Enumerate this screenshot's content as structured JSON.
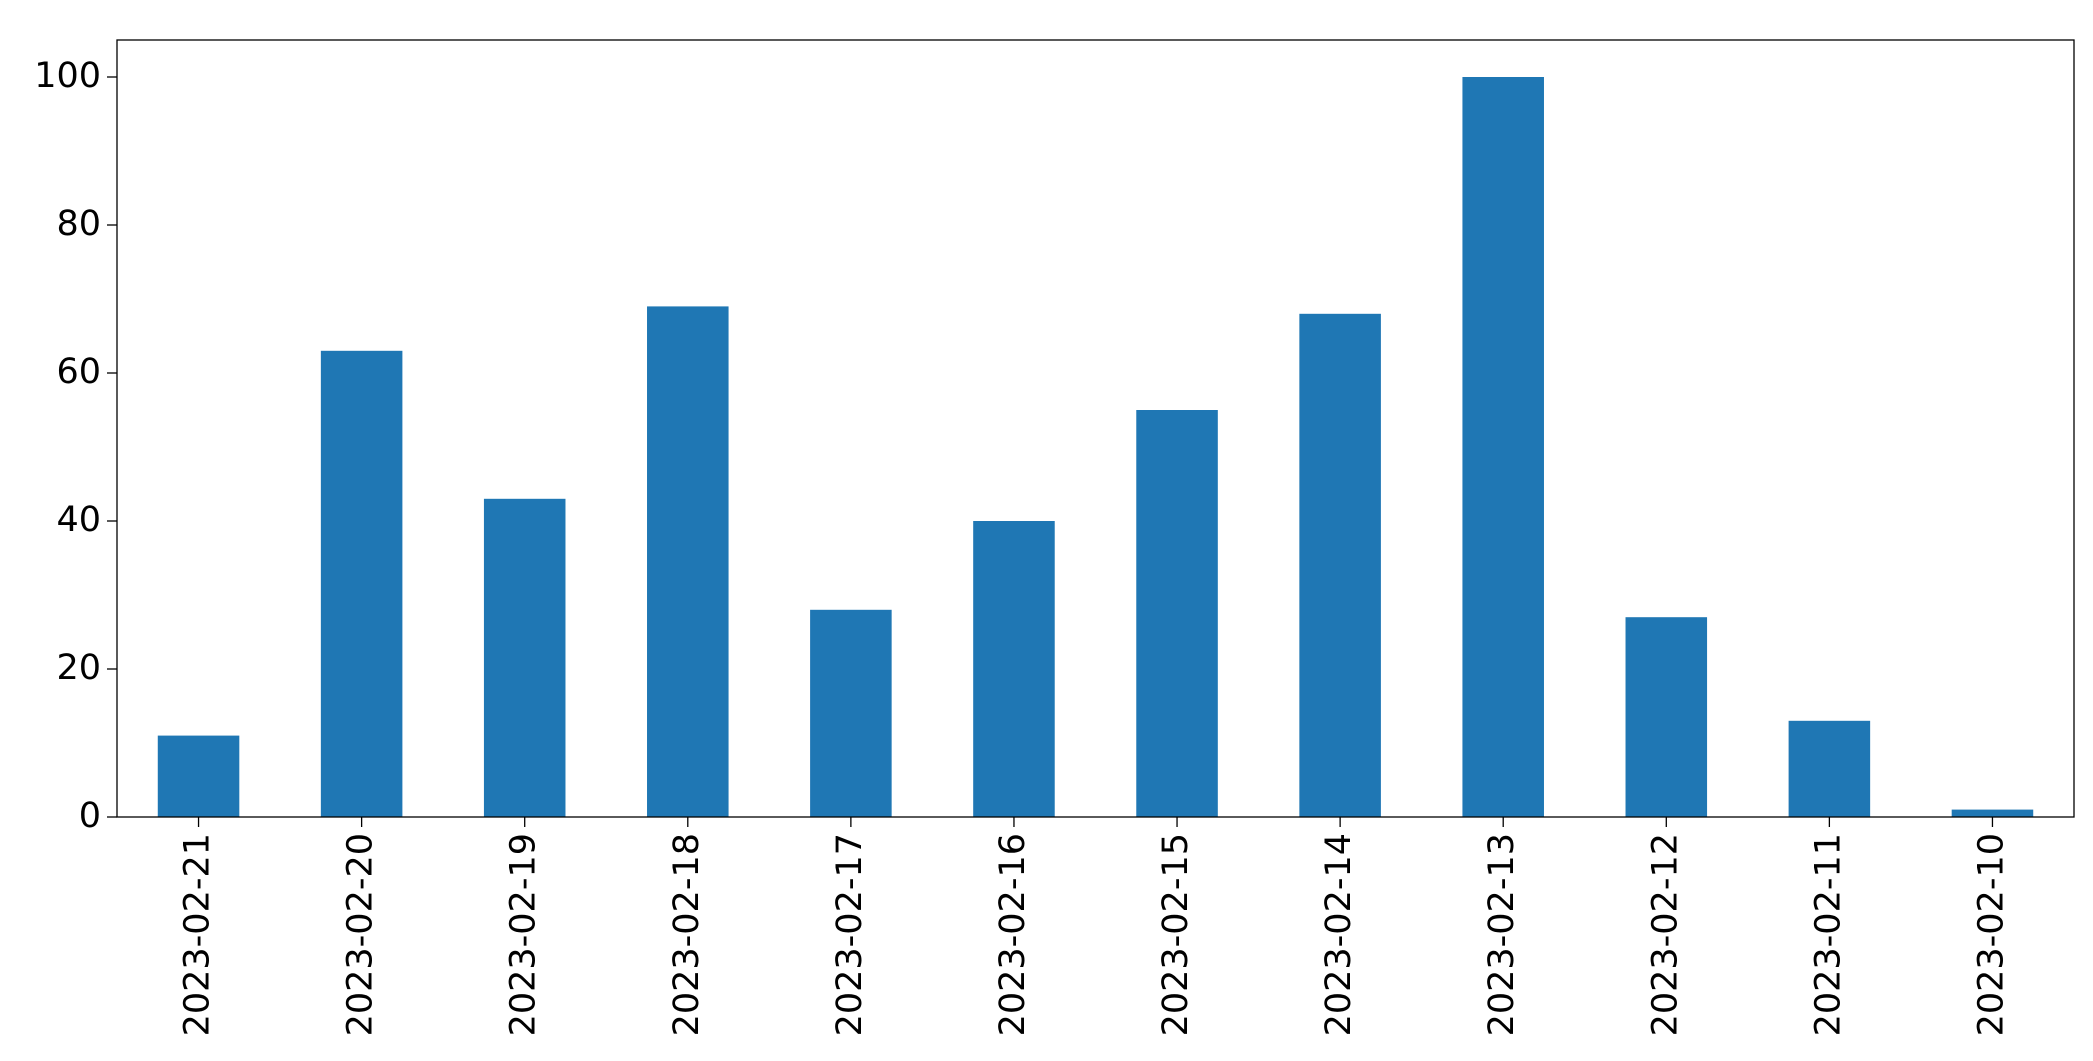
{
  "chart_data": {
    "type": "bar",
    "categories": [
      "2023-02-21",
      "2023-02-20",
      "2023-02-19",
      "2023-02-18",
      "2023-02-17",
      "2023-02-16",
      "2023-02-15",
      "2023-02-14",
      "2023-02-13",
      "2023-02-12",
      "2023-02-11",
      "2023-02-10"
    ],
    "values": [
      11,
      63,
      43,
      69,
      28,
      40,
      55,
      68,
      100,
      27,
      13,
      1
    ],
    "color": "#1f77b4",
    "ylim": [
      0,
      105
    ],
    "yticks": [
      0,
      20,
      40,
      60,
      80,
      100
    ],
    "grid": false
  }
}
